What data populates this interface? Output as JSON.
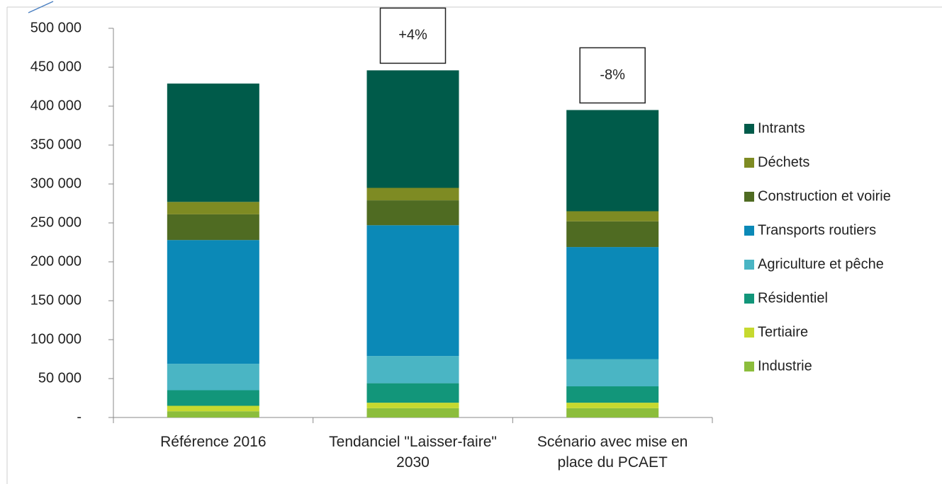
{
  "chart_data": {
    "type": "stacked_bar",
    "categories": [
      "Référence 2016",
      "Tendanciel \"Laisser-faire\" 2030",
      "Scénario avec mise en place du PCAET"
    ],
    "series": [
      {
        "name": "Industrie",
        "color": "#8cbd3c",
        "values": [
          8000,
          12000,
          12000
        ]
      },
      {
        "name": "Tertiaire",
        "color": "#c6d92f",
        "values": [
          7000,
          7000,
          7000
        ]
      },
      {
        "name": "Résidentiel",
        "color": "#12967a",
        "values": [
          20000,
          25000,
          21000
        ]
      },
      {
        "name": "Agriculture et pêche",
        "color": "#4ab5c4",
        "values": [
          34000,
          35000,
          35000
        ]
      },
      {
        "name": "Transports routiers",
        "color": "#0b89b7",
        "values": [
          159000,
          168000,
          144000
        ]
      },
      {
        "name": "Construction et voirie",
        "color": "#4f6b22",
        "values": [
          33000,
          32000,
          33000
        ]
      },
      {
        "name": "Déchets",
        "color": "#7e8b23",
        "values": [
          16000,
          16000,
          13000
        ]
      },
      {
        "name": "Intrants",
        "color": "#005b4a",
        "values": [
          152000,
          151000,
          130000
        ]
      }
    ],
    "annotations": [
      {
        "label": "+4%",
        "category": "Tendanciel \"Laisser-faire\" 2030"
      },
      {
        "label": "-8%",
        "category": "Scénario avec mise en place du PCAET"
      }
    ],
    "ylim": [
      0,
      500000
    ],
    "yticks": [
      {
        "value": 0,
        "label": "-"
      },
      {
        "value": 50000,
        "label": "50 000"
      },
      {
        "value": 100000,
        "label": "100 000"
      },
      {
        "value": 150000,
        "label": "150 000"
      },
      {
        "value": 200000,
        "label": "200 000"
      },
      {
        "value": 250000,
        "label": "250 000"
      },
      {
        "value": 300000,
        "label": "300 000"
      },
      {
        "value": 350000,
        "label": "350 000"
      },
      {
        "value": 400000,
        "label": "400 000"
      },
      {
        "value": 450000,
        "label": "450 000"
      },
      {
        "value": 500000,
        "label": "500 000"
      }
    ],
    "grid": false,
    "legend": "right"
  }
}
